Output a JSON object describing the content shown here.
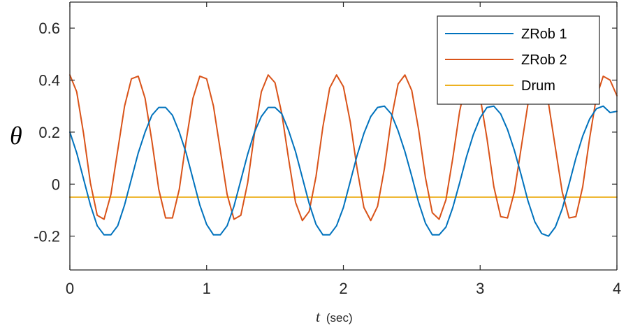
{
  "chart_data": {
    "type": "line",
    "xlabel_var": "t",
    "xlabel_unit": " (sec)",
    "ylabel": "θ",
    "xlim": [
      0,
      4
    ],
    "ylim": [
      -0.33,
      0.7
    ],
    "xticks": [
      0,
      1,
      2,
      3,
      4
    ],
    "xtick_labels": [
      "0",
      "1",
      "2",
      "3",
      "4"
    ],
    "yticks": [
      -0.2,
      0,
      0.2,
      0.4,
      0.6
    ],
    "ytick_labels": [
      "-0.2",
      "0",
      "0.2",
      "0.4",
      "0.6"
    ],
    "grid": false,
    "legend_position": "top-right",
    "series": [
      {
        "name": "ZRob 1",
        "color": "#0072BD",
        "x": [
          0,
          0.05,
          0.1,
          0.15,
          0.2,
          0.25,
          0.3,
          0.35,
          0.4,
          0.45,
          0.5,
          0.55,
          0.6,
          0.65,
          0.7,
          0.75,
          0.8,
          0.85,
          0.9,
          0.95,
          1.0,
          1.05,
          1.1,
          1.15,
          1.2,
          1.25,
          1.3,
          1.35,
          1.4,
          1.45,
          1.5,
          1.55,
          1.6,
          1.65,
          1.7,
          1.75,
          1.8,
          1.85,
          1.9,
          1.95,
          2.0,
          2.05,
          2.1,
          2.15,
          2.2,
          2.25,
          2.3,
          2.35,
          2.4,
          2.45,
          2.5,
          2.55,
          2.6,
          2.65,
          2.7,
          2.75,
          2.8,
          2.85,
          2.9,
          2.95,
          3.0,
          3.05,
          3.1,
          3.15,
          3.2,
          3.25,
          3.3,
          3.35,
          3.4,
          3.45,
          3.5,
          3.55,
          3.6,
          3.65,
          3.7,
          3.75,
          3.8,
          3.85,
          3.9,
          3.95,
          4.0
        ],
        "y": [
          0.2,
          0.12,
          0.02,
          -0.08,
          -0.16,
          -0.195,
          -0.195,
          -0.16,
          -0.08,
          0.02,
          0.12,
          0.2,
          0.265,
          0.295,
          0.295,
          0.265,
          0.2,
          0.12,
          0.02,
          -0.08,
          -0.155,
          -0.195,
          -0.195,
          -0.16,
          -0.085,
          0.015,
          0.115,
          0.2,
          0.26,
          0.295,
          0.295,
          0.27,
          0.205,
          0.125,
          0.025,
          -0.075,
          -0.155,
          -0.195,
          -0.195,
          -0.16,
          -0.09,
          0.01,
          0.11,
          0.195,
          0.26,
          0.295,
          0.3,
          0.27,
          0.205,
          0.125,
          0.03,
          -0.07,
          -0.15,
          -0.195,
          -0.195,
          -0.165,
          -0.09,
          0.005,
          0.105,
          0.19,
          0.255,
          0.295,
          0.3,
          0.27,
          0.21,
          0.13,
          0.035,
          -0.065,
          -0.145,
          -0.19,
          -0.2,
          -0.165,
          -0.095,
          0.0,
          0.1,
          0.185,
          0.25,
          0.29,
          0.3,
          0.275,
          0.28
        ]
      },
      {
        "name": "ZRob 2",
        "color": "#D95319",
        "x": [
          0,
          0.05,
          0.1,
          0.15,
          0.2,
          0.25,
          0.3,
          0.35,
          0.4,
          0.45,
          0.5,
          0.55,
          0.6,
          0.65,
          0.7,
          0.75,
          0.8,
          0.85,
          0.9,
          0.95,
          1.0,
          1.05,
          1.1,
          1.15,
          1.2,
          1.25,
          1.3,
          1.35,
          1.4,
          1.45,
          1.5,
          1.55,
          1.6,
          1.65,
          1.7,
          1.75,
          1.8,
          1.85,
          1.9,
          1.95,
          2.0,
          2.05,
          2.1,
          2.15,
          2.2,
          2.25,
          2.3,
          2.35,
          2.4,
          2.45,
          2.5,
          2.55,
          2.6,
          2.65,
          2.7,
          2.75,
          2.8,
          2.85,
          2.9,
          2.95,
          3.0,
          3.05,
          3.1,
          3.15,
          3.2,
          3.25,
          3.3,
          3.35,
          3.4,
          3.45,
          3.5,
          3.55,
          3.6,
          3.65,
          3.7,
          3.75,
          3.8,
          3.85,
          3.9,
          3.95,
          4.0
        ],
        "y": [
          0.42,
          0.355,
          0.195,
          0.005,
          -0.12,
          -0.135,
          -0.04,
          0.13,
          0.3,
          0.405,
          0.415,
          0.33,
          0.165,
          -0.02,
          -0.13,
          -0.13,
          -0.02,
          0.165,
          0.33,
          0.415,
          0.405,
          0.3,
          0.13,
          -0.04,
          -0.135,
          -0.12,
          0.005,
          0.195,
          0.355,
          0.42,
          0.39,
          0.27,
          0.095,
          -0.07,
          -0.14,
          -0.105,
          0.03,
          0.22,
          0.37,
          0.42,
          0.375,
          0.24,
          0.06,
          -0.09,
          -0.14,
          -0.085,
          0.06,
          0.25,
          0.385,
          0.42,
          0.36,
          0.21,
          0.025,
          -0.11,
          -0.135,
          -0.06,
          0.1,
          0.28,
          0.4,
          0.415,
          0.335,
          0.175,
          -0.01,
          -0.125,
          -0.13,
          -0.03,
          0.14,
          0.31,
          0.41,
          0.41,
          0.31,
          0.14,
          -0.03,
          -0.13,
          -0.125,
          -0.01,
          0.175,
          0.335,
          0.415,
          0.4,
          0.34
        ]
      },
      {
        "name": "Drum",
        "color": "#EDB120",
        "x": [
          0,
          4
        ],
        "y": [
          -0.05,
          -0.05
        ]
      }
    ]
  }
}
